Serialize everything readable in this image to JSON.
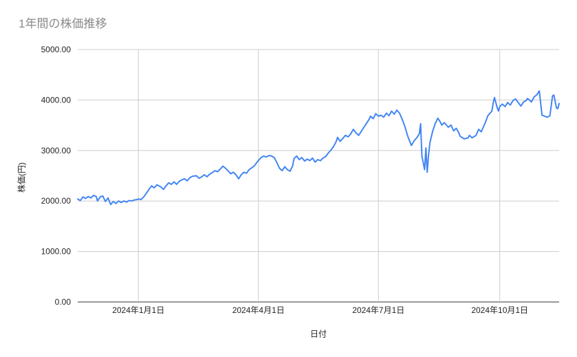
{
  "chart": {
    "title": "1年間の株価推移",
    "y_axis_title": "株価(円)",
    "x_axis_title": "日付"
  },
  "colors": {
    "line": "#4285f4",
    "grid": "#cccccc",
    "axis_baseline": "#333333",
    "tick_label": "#222222",
    "title": "#8a8a8a",
    "background": "#ffffff"
  },
  "chart_data": {
    "type": "line",
    "title": "1年間の株価推移",
    "xlabel": "日付",
    "ylabel": "株価(円)",
    "ylim": [
      0,
      5000
    ],
    "grid": true,
    "legend": "none",
    "x_domain_days": 365,
    "y_ticks": [
      {
        "value": 0,
        "label": "0.00"
      },
      {
        "value": 1000,
        "label": "1000.00"
      },
      {
        "value": 2000,
        "label": "2000.00"
      },
      {
        "value": 3000,
        "label": "3000.00"
      },
      {
        "value": 4000,
        "label": "4000.00"
      },
      {
        "value": 5000,
        "label": "5000.00"
      }
    ],
    "x_ticks": [
      {
        "day": 46,
        "label": "2024年1月1日"
      },
      {
        "day": 137,
        "label": "2024年4月1日"
      },
      {
        "day": 228,
        "label": "2024年7月1日"
      },
      {
        "day": 320,
        "label": "2024年10月1日"
      }
    ],
    "series_name": "株価",
    "points": [
      [
        0,
        2040
      ],
      [
        2,
        2010
      ],
      [
        4,
        2080
      ],
      [
        6,
        2050
      ],
      [
        8,
        2090
      ],
      [
        10,
        2060
      ],
      [
        12,
        2110
      ],
      [
        14,
        2090
      ],
      [
        15,
        2000
      ],
      [
        17,
        2080
      ],
      [
        19,
        2100
      ],
      [
        21,
        1990
      ],
      [
        23,
        2060
      ],
      [
        25,
        1930
      ],
      [
        27,
        1990
      ],
      [
        29,
        1950
      ],
      [
        31,
        2000
      ],
      [
        33,
        1970
      ],
      [
        35,
        2000
      ],
      [
        37,
        1980
      ],
      [
        39,
        2010
      ],
      [
        41,
        2000
      ],
      [
        43,
        2020
      ],
      [
        45,
        2030
      ],
      [
        46,
        2040
      ],
      [
        48,
        2030
      ],
      [
        50,
        2080
      ],
      [
        52,
        2150
      ],
      [
        54,
        2230
      ],
      [
        56,
        2300
      ],
      [
        58,
        2260
      ],
      [
        60,
        2320
      ],
      [
        63,
        2280
      ],
      [
        65,
        2230
      ],
      [
        67,
        2300
      ],
      [
        69,
        2360
      ],
      [
        71,
        2330
      ],
      [
        73,
        2380
      ],
      [
        75,
        2330
      ],
      [
        77,
        2390
      ],
      [
        79,
        2420
      ],
      [
        81,
        2440
      ],
      [
        83,
        2400
      ],
      [
        85,
        2460
      ],
      [
        87,
        2490
      ],
      [
        90,
        2500
      ],
      [
        92,
        2450
      ],
      [
        94,
        2480
      ],
      [
        96,
        2520
      ],
      [
        98,
        2480
      ],
      [
        100,
        2530
      ],
      [
        102,
        2560
      ],
      [
        104,
        2600
      ],
      [
        106,
        2580
      ],
      [
        108,
        2630
      ],
      [
        110,
        2690
      ],
      [
        112,
        2650
      ],
      [
        114,
        2600
      ],
      [
        116,
        2540
      ],
      [
        118,
        2570
      ],
      [
        120,
        2520
      ],
      [
        122,
        2440
      ],
      [
        124,
        2520
      ],
      [
        126,
        2570
      ],
      [
        128,
        2550
      ],
      [
        130,
        2620
      ],
      [
        132,
        2660
      ],
      [
        134,
        2700
      ],
      [
        136,
        2770
      ],
      [
        137,
        2800
      ],
      [
        139,
        2860
      ],
      [
        141,
        2890
      ],
      [
        143,
        2870
      ],
      [
        145,
        2900
      ],
      [
        147,
        2890
      ],
      [
        149,
        2860
      ],
      [
        151,
        2760
      ],
      [
        153,
        2650
      ],
      [
        155,
        2600
      ],
      [
        157,
        2680
      ],
      [
        159,
        2620
      ],
      [
        161,
        2590
      ],
      [
        163,
        2700
      ],
      [
        164,
        2840
      ],
      [
        166,
        2890
      ],
      [
        168,
        2820
      ],
      [
        170,
        2860
      ],
      [
        172,
        2790
      ],
      [
        174,
        2830
      ],
      [
        176,
        2800
      ],
      [
        178,
        2850
      ],
      [
        180,
        2770
      ],
      [
        182,
        2820
      ],
      [
        184,
        2800
      ],
      [
        186,
        2850
      ],
      [
        188,
        2880
      ],
      [
        190,
        2950
      ],
      [
        192,
        3010
      ],
      [
        194,
        3080
      ],
      [
        196,
        3180
      ],
      [
        197,
        3260
      ],
      [
        199,
        3180
      ],
      [
        201,
        3240
      ],
      [
        203,
        3300
      ],
      [
        205,
        3270
      ],
      [
        207,
        3330
      ],
      [
        209,
        3420
      ],
      [
        211,
        3350
      ],
      [
        213,
        3300
      ],
      [
        215,
        3380
      ],
      [
        217,
        3460
      ],
      [
        219,
        3540
      ],
      [
        221,
        3620
      ],
      [
        222,
        3680
      ],
      [
        224,
        3630
      ],
      [
        226,
        3730
      ],
      [
        228,
        3680
      ],
      [
        230,
        3700
      ],
      [
        232,
        3660
      ],
      [
        234,
        3740
      ],
      [
        236,
        3690
      ],
      [
        238,
        3780
      ],
      [
        240,
        3720
      ],
      [
        242,
        3800
      ],
      [
        244,
        3740
      ],
      [
        246,
        3620
      ],
      [
        248,
        3480
      ],
      [
        250,
        3300
      ],
      [
        251,
        3230
      ],
      [
        253,
        3100
      ],
      [
        255,
        3190
      ],
      [
        257,
        3250
      ],
      [
        259,
        3330
      ],
      [
        260,
        3530
      ],
      [
        261,
        2890
      ],
      [
        263,
        2620
      ],
      [
        264,
        3050
      ],
      [
        265,
        2570
      ],
      [
        266,
        2900
      ],
      [
        267,
        3150
      ],
      [
        269,
        3370
      ],
      [
        271,
        3530
      ],
      [
        273,
        3640
      ],
      [
        275,
        3560
      ],
      [
        276,
        3505
      ],
      [
        278,
        3550
      ],
      [
        281,
        3460
      ],
      [
        283,
        3505
      ],
      [
        285,
        3390
      ],
      [
        287,
        3440
      ],
      [
        289,
        3350
      ],
      [
        290,
        3280
      ],
      [
        293,
        3230
      ],
      [
        296,
        3250
      ],
      [
        297,
        3300
      ],
      [
        299,
        3250
      ],
      [
        302,
        3300
      ],
      [
        304,
        3420
      ],
      [
        306,
        3370
      ],
      [
        309,
        3550
      ],
      [
        311,
        3690
      ],
      [
        314,
        3780
      ],
      [
        315,
        3940
      ],
      [
        316,
        4050
      ],
      [
        318,
        3850
      ],
      [
        319,
        3780
      ],
      [
        320,
        3870
      ],
      [
        322,
        3920
      ],
      [
        324,
        3870
      ],
      [
        326,
        3950
      ],
      [
        328,
        3900
      ],
      [
        330,
        3990
      ],
      [
        332,
        4020
      ],
      [
        334,
        3950
      ],
      [
        336,
        3880
      ],
      [
        338,
        3960
      ],
      [
        340,
        3990
      ],
      [
        341,
        4030
      ],
      [
        343,
        3990
      ],
      [
        344,
        3960
      ],
      [
        346,
        4060
      ],
      [
        348,
        4100
      ],
      [
        350,
        4180
      ],
      [
        352,
        3700
      ],
      [
        354,
        3680
      ],
      [
        356,
        3660
      ],
      [
        358,
        3690
      ],
      [
        360,
        4080
      ],
      [
        361,
        4100
      ],
      [
        363,
        3840
      ],
      [
        364,
        3830
      ],
      [
        365,
        3930
      ]
    ]
  }
}
